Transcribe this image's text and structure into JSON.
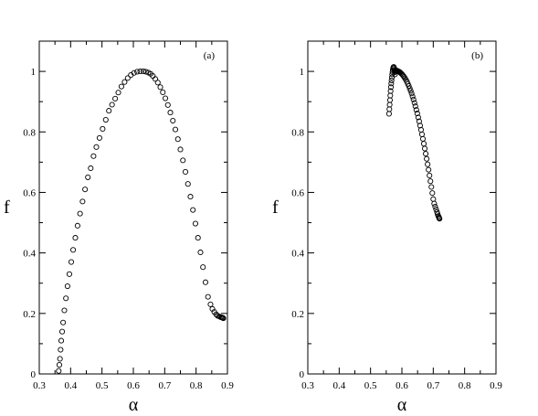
{
  "chart_data": [
    {
      "type": "scatter",
      "panel_label": "(a)",
      "xlabel": "α",
      "ylabel": "f",
      "xlim": [
        0.3,
        0.9
      ],
      "ylim": [
        0,
        1.1
      ],
      "xticks": [
        "0.3",
        "0.4",
        "0.5",
        "0.6",
        "0.7",
        "0.8",
        "0.9"
      ],
      "yticks": [
        "0",
        "0.2",
        "0.4",
        "0.6",
        "0.8",
        "1"
      ],
      "grid": false,
      "marker": "open-circle",
      "series": [
        {
          "x": [
            0.362,
            0.364,
            0.366,
            0.368,
            0.37,
            0.373,
            0.376,
            0.38,
            0.385,
            0.39,
            0.396,
            0.402,
            0.408,
            0.415,
            0.422,
            0.43,
            0.438,
            0.446,
            0.455,
            0.464,
            0.473,
            0.482,
            0.492,
            0.502,
            0.512,
            0.522,
            0.532,
            0.542,
            0.552,
            0.562,
            0.572,
            0.582,
            0.592,
            0.602,
            0.612,
            0.622,
            0.632,
            0.64,
            0.648,
            0.655,
            0.662,
            0.67,
            0.678,
            0.686,
            0.694,
            0.702,
            0.71,
            0.718,
            0.726,
            0.734,
            0.742,
            0.75,
            0.758,
            0.766,
            0.774,
            0.782,
            0.79,
            0.798,
            0.806,
            0.814,
            0.822,
            0.83,
            0.838,
            0.846,
            0.852,
            0.858,
            0.864,
            0.869,
            0.874,
            0.878,
            0.881,
            0.884,
            0.886,
            0.887
          ],
          "y": [
            0.01,
            0.03,
            0.05,
            0.08,
            0.11,
            0.14,
            0.17,
            0.21,
            0.25,
            0.29,
            0.33,
            0.37,
            0.41,
            0.45,
            0.49,
            0.53,
            0.57,
            0.61,
            0.65,
            0.68,
            0.72,
            0.75,
            0.78,
            0.81,
            0.84,
            0.87,
            0.89,
            0.91,
            0.93,
            0.95,
            0.965,
            0.978,
            0.988,
            0.995,
            0.999,
            1.0,
            1.0,
            0.999,
            0.996,
            0.992,
            0.985,
            0.975,
            0.963,
            0.948,
            0.931,
            0.911,
            0.889,
            0.864,
            0.837,
            0.808,
            0.776,
            0.742,
            0.706,
            0.668,
            0.628,
            0.586,
            0.542,
            0.497,
            0.45,
            0.402,
            0.353,
            0.303,
            0.255,
            0.23,
            0.215,
            0.205,
            0.197,
            0.192,
            0.19,
            0.188,
            0.187,
            0.186,
            0.185,
            0.184
          ]
        }
      ]
    },
    {
      "type": "scatter",
      "panel_label": "(b)",
      "xlabel": "α",
      "ylabel": "f",
      "xlim": [
        0.3,
        0.9
      ],
      "ylim": [
        0,
        1.1
      ],
      "xticks": [
        "0.3",
        "0.4",
        "0.5",
        "0.6",
        "0.7",
        "0.8",
        "0.9"
      ],
      "yticks": [
        "0",
        "0.2",
        "0.4",
        "0.6",
        "0.8",
        "1"
      ],
      "grid": false,
      "marker": "open-circle",
      "series": [
        {
          "x": [
            0.559,
            0.56,
            0.561,
            0.562,
            0.563,
            0.564,
            0.565,
            0.566,
            0.567,
            0.568,
            0.569,
            0.57,
            0.571,
            0.572,
            0.573,
            0.574,
            0.575,
            0.576,
            0.577,
            0.578,
            0.578,
            0.579,
            0.58,
            0.581,
            0.582,
            0.583,
            0.585,
            0.587,
            0.589,
            0.591,
            0.593,
            0.595,
            0.598,
            0.601,
            0.604,
            0.607,
            0.61,
            0.613,
            0.616,
            0.619,
            0.622,
            0.625,
            0.628,
            0.631,
            0.634,
            0.637,
            0.64,
            0.643,
            0.646,
            0.649,
            0.652,
            0.655,
            0.658,
            0.661,
            0.664,
            0.667,
            0.67,
            0.673,
            0.676,
            0.679,
            0.682,
            0.685,
            0.688,
            0.691,
            0.694,
            0.697,
            0.7,
            0.703,
            0.706,
            0.709,
            0.712,
            0.714,
            0.716,
            0.718,
            0.719,
            0.72
          ],
          "y": [
            0.86,
            0.875,
            0.89,
            0.905,
            0.92,
            0.935,
            0.948,
            0.96,
            0.97,
            0.98,
            0.99,
            0.998,
            1.005,
            1.01,
            1.014,
            1.015,
            1.012,
            1.005,
            0.997,
            0.99,
            1.0,
            1.003,
            1.004,
            1.004,
            1.003,
            1.003,
            1.002,
            1.001,
            1.0,
            0.999,
            0.998,
            0.996,
            0.993,
            0.99,
            0.986,
            0.982,
            0.977,
            0.972,
            0.966,
            0.959,
            0.952,
            0.944,
            0.936,
            0.927,
            0.917,
            0.907,
            0.896,
            0.885,
            0.873,
            0.861,
            0.848,
            0.835,
            0.821,
            0.807,
            0.792,
            0.777,
            0.761,
            0.745,
            0.728,
            0.711,
            0.693,
            0.675,
            0.656,
            0.637,
            0.618,
            0.598,
            0.578,
            0.563,
            0.553,
            0.544,
            0.535,
            0.528,
            0.522,
            0.518,
            0.515,
            0.513
          ]
        }
      ]
    }
  ]
}
